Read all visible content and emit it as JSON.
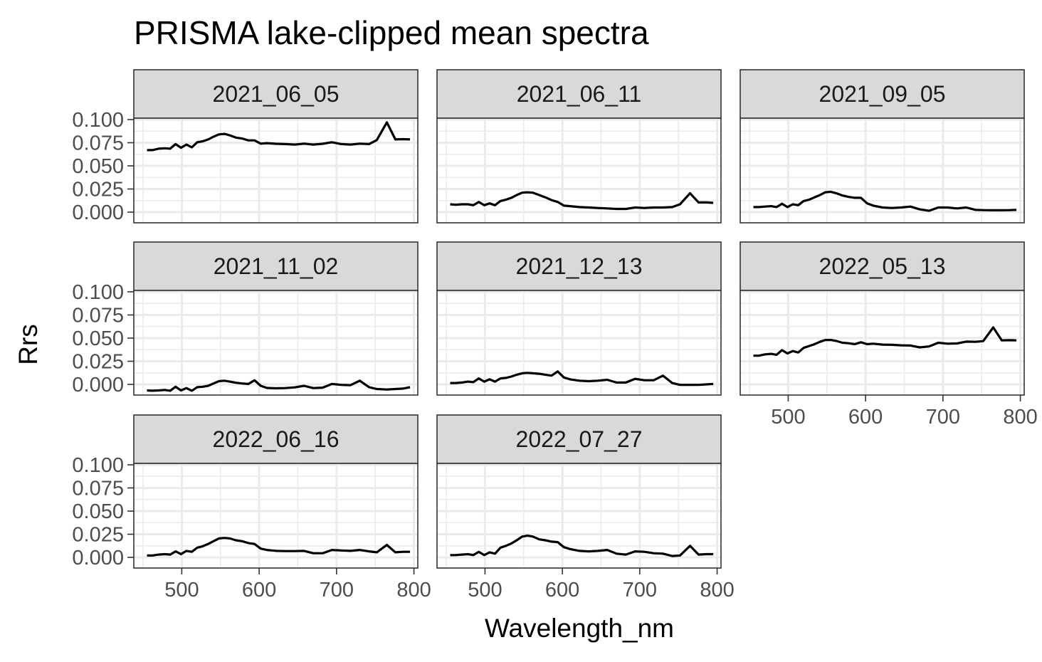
{
  "chart_data": {
    "type": "line",
    "title": "PRISMA lake-clipped mean spectra",
    "xlabel": "Wavelength_nm",
    "ylabel": "Rrs",
    "xlim": [
      438,
      805
    ],
    "ylim": [
      -0.0115,
      0.1015
    ],
    "x_ticks": [
      500,
      600,
      700,
      800
    ],
    "y_ticks": [
      0.0,
      0.025,
      0.05,
      0.075,
      0.1
    ],
    "y_tick_labels": [
      "0.000",
      "0.025",
      "0.050",
      "0.075",
      "0.100"
    ],
    "grid": true,
    "layout": "facet wrap, 3 columns",
    "x": [
      455,
      462,
      470,
      478,
      485,
      492,
      499,
      506,
      513,
      520,
      527,
      534,
      541,
      548,
      555,
      562,
      570,
      578,
      586,
      594,
      602,
      610,
      622,
      634,
      646,
      658,
      670,
      682,
      694,
      706,
      718,
      730,
      742,
      752,
      765,
      776,
      786,
      795
    ],
    "series": [
      {
        "facet": "2021_06_05",
        "values": [
          0.067,
          0.067,
          0.0685,
          0.069,
          0.0685,
          0.0735,
          0.0695,
          0.073,
          0.07,
          0.0755,
          0.0765,
          0.0785,
          0.0815,
          0.084,
          0.0845,
          0.083,
          0.0805,
          0.0795,
          0.0775,
          0.0775,
          0.074,
          0.0745,
          0.0738,
          0.0735,
          0.073,
          0.074,
          0.073,
          0.0738,
          0.0755,
          0.0735,
          0.073,
          0.074,
          0.0735,
          0.0778,
          0.097,
          0.0785,
          0.0788,
          0.0785
        ]
      },
      {
        "facet": "2021_06_11",
        "values": [
          0.0085,
          0.008,
          0.0085,
          0.0085,
          0.0075,
          0.011,
          0.0075,
          0.0095,
          0.0075,
          0.012,
          0.0135,
          0.0155,
          0.0185,
          0.021,
          0.0215,
          0.021,
          0.0185,
          0.016,
          0.013,
          0.011,
          0.007,
          0.0065,
          0.0055,
          0.005,
          0.0045,
          0.004,
          0.0035,
          0.0035,
          0.005,
          0.0045,
          0.005,
          0.005,
          0.0055,
          0.0085,
          0.0205,
          0.0105,
          0.0105,
          0.01
        ]
      },
      {
        "facet": "2021_09_05",
        "values": [
          0.0055,
          0.0055,
          0.006,
          0.0065,
          0.0055,
          0.009,
          0.0055,
          0.0085,
          0.0075,
          0.012,
          0.0135,
          0.016,
          0.0185,
          0.0215,
          0.022,
          0.0205,
          0.018,
          0.0165,
          0.0155,
          0.0155,
          0.0095,
          0.007,
          0.005,
          0.0045,
          0.005,
          0.006,
          0.003,
          0.0015,
          0.005,
          0.005,
          0.004,
          0.005,
          0.0025,
          0.0022,
          0.002,
          0.002,
          0.0022,
          0.0025
        ]
      },
      {
        "facet": "2021_11_02",
        "values": [
          -0.0065,
          -0.0068,
          -0.0065,
          -0.006,
          -0.0068,
          -0.0025,
          -0.0065,
          -0.004,
          -0.0068,
          -0.003,
          -0.0025,
          -0.0015,
          0.001,
          0.0035,
          0.004,
          0.003,
          0.0018,
          0.001,
          0.0005,
          0.0045,
          -0.0015,
          -0.0038,
          -0.0042,
          -0.004,
          -0.0032,
          -0.0015,
          -0.004,
          -0.0035,
          0.0005,
          -0.0005,
          -0.0008,
          0.004,
          -0.003,
          -0.005,
          -0.0055,
          -0.005,
          -0.0045,
          -0.003
        ]
      },
      {
        "facet": "2021_12_13",
        "values": [
          0.0015,
          0.0015,
          0.002,
          0.003,
          0.0025,
          0.0065,
          0.003,
          0.0055,
          0.003,
          0.0065,
          0.007,
          0.0085,
          0.0105,
          0.012,
          0.0125,
          0.012,
          0.0115,
          0.0105,
          0.0095,
          0.014,
          0.0075,
          0.0055,
          0.004,
          0.0035,
          0.004,
          0.005,
          0.002,
          0.002,
          0.006,
          0.0045,
          0.0045,
          0.0095,
          0.0015,
          -0.0005,
          -0.0005,
          -0.0005,
          0.0,
          0.0005
        ]
      },
      {
        "facet": "2022_05_13",
        "values": [
          0.031,
          0.031,
          0.0325,
          0.033,
          0.032,
          0.037,
          0.0335,
          0.036,
          0.0345,
          0.0395,
          0.0415,
          0.0435,
          0.046,
          0.048,
          0.048,
          0.047,
          0.045,
          0.0445,
          0.0435,
          0.0455,
          0.0435,
          0.044,
          0.043,
          0.0428,
          0.0422,
          0.042,
          0.04,
          0.041,
          0.045,
          0.044,
          0.0442,
          0.0462,
          0.046,
          0.0468,
          0.0615,
          0.0475,
          0.0478,
          0.0475
        ]
      },
      {
        "facet": "2022_06_16",
        "values": [
          0.002,
          0.002,
          0.003,
          0.0035,
          0.003,
          0.0065,
          0.0035,
          0.007,
          0.006,
          0.0105,
          0.012,
          0.0145,
          0.0175,
          0.0205,
          0.021,
          0.0205,
          0.0185,
          0.0175,
          0.0155,
          0.0145,
          0.0095,
          0.008,
          0.007,
          0.0068,
          0.0068,
          0.007,
          0.0045,
          0.0045,
          0.008,
          0.0075,
          0.007,
          0.008,
          0.0065,
          0.0055,
          0.0135,
          0.0055,
          0.006,
          0.006
        ]
      },
      {
        "facet": "2022_07_27",
        "values": [
          0.0025,
          0.0025,
          0.003,
          0.0035,
          0.0025,
          0.006,
          0.0025,
          0.0055,
          0.004,
          0.0105,
          0.0125,
          0.015,
          0.0185,
          0.0225,
          0.0235,
          0.0225,
          0.0195,
          0.0185,
          0.017,
          0.0165,
          0.011,
          0.009,
          0.007,
          0.0065,
          0.007,
          0.008,
          0.004,
          0.003,
          0.0065,
          0.006,
          0.0045,
          0.004,
          0.0015,
          0.002,
          0.0125,
          0.003,
          0.0035,
          0.0035
        ]
      }
    ]
  }
}
